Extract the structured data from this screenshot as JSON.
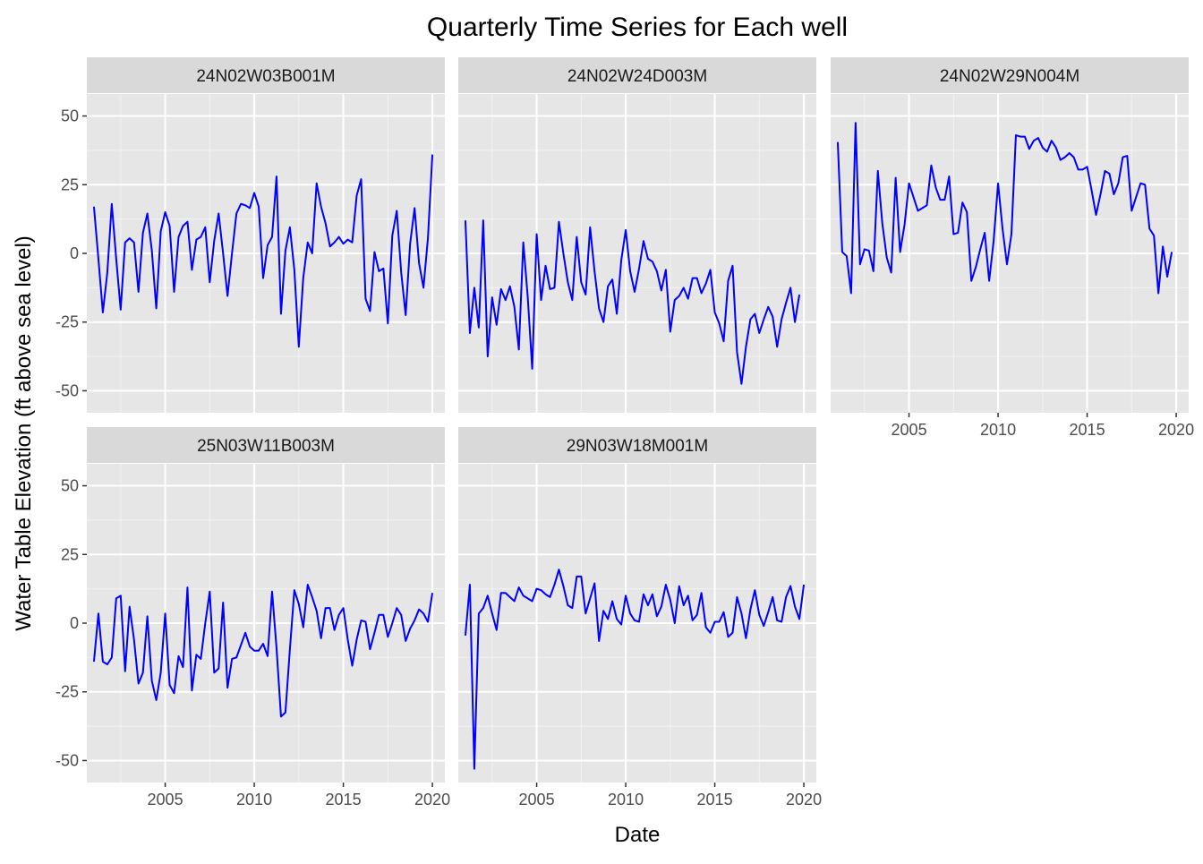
{
  "chart_data": {
    "type": "line",
    "title": "Quarterly Time Series for Each well",
    "xlabel": "Date",
    "ylabel": "Water Table Elevation (ft above sea level)",
    "x_ticks": [
      2005,
      2010,
      2015,
      2020
    ],
    "y_ticks": [
      -50,
      -25,
      0,
      25,
      50
    ],
    "xlim": [
      2000.6,
      2020.7
    ],
    "ylim": [
      -58,
      58
    ],
    "grid": true,
    "line_color": "#0000ff",
    "panel_background": "#e6e6e6",
    "strip_background": "#d9d9d9",
    "panels": [
      {
        "name": "24N02W03B001M",
        "x_start": 2001.0,
        "x_step": 0.25,
        "values": [
          17,
          -2,
          -21.5,
          -7,
          18,
          -2,
          -20.5,
          4,
          5.5,
          4,
          -14,
          7.5,
          14.5,
          1,
          -20,
          8,
          15,
          10,
          -14,
          6,
          10,
          11.5,
          -6,
          5,
          6,
          9.5,
          -10.5,
          4.5,
          14.5,
          0,
          -15.5,
          0,
          14.5,
          18,
          17.5,
          16.5,
          22,
          17,
          -9,
          3,
          6,
          28,
          -22,
          1,
          9.5,
          -6,
          -34,
          -9,
          4,
          0,
          25.5,
          17,
          11,
          2.5,
          4,
          6,
          3.5,
          5,
          4,
          21,
          27,
          -16.5,
          -21,
          0.5,
          -6.5,
          -5.5,
          -25.5,
          6.5,
          15.5,
          -7,
          -22.5,
          3.5,
          16.5,
          -3.5,
          -12.5,
          5.5,
          36
        ]
      },
      {
        "name": "24N02W24D003M",
        "x_start": 2001.0,
        "x_step": 0.25,
        "values": [
          12,
          -29,
          -12.5,
          -27,
          12,
          -37.5,
          -16,
          -26,
          -13,
          -17,
          -12,
          -19.5,
          -35,
          4,
          -16,
          -42,
          7,
          -17,
          -4.5,
          -13,
          -12.5,
          11.5,
          0,
          -10.5,
          -17,
          6,
          -10.5,
          -15,
          9.5,
          -6.5,
          -20,
          -25,
          -12,
          -9.5,
          -22,
          -2.5,
          8.5,
          -6.5,
          -14,
          -5.5,
          4.5,
          -2,
          -3,
          -6.5,
          -13.5,
          -6,
          -28.5,
          -17,
          -15.5,
          -12.5,
          -16.5,
          -9,
          -9,
          -14.5,
          -11,
          -6,
          -21.5,
          -25.5,
          -32,
          -10,
          -4.5,
          -36,
          -47.5,
          -34,
          -24,
          -22,
          -29,
          -24,
          -19.5,
          -23,
          -34,
          -24,
          -18,
          -12.5,
          -25,
          -15
        ]
      },
      {
        "name": "24N02W29N004M",
        "x_start": 2001.0,
        "x_step": 0.25,
        "values": [
          40.5,
          0.5,
          -1,
          -14.5,
          47.5,
          -4,
          1.5,
          1,
          -6.5,
          30,
          11,
          -1.5,
          -7,
          27.5,
          0.5,
          10.5,
          25.5,
          20.5,
          15.5,
          16.5,
          17.5,
          32,
          24,
          19.5,
          19.5,
          28,
          7,
          7.5,
          18.5,
          15,
          -10,
          -5,
          1.5,
          7.5,
          -10,
          4.5,
          25.5,
          9,
          -4,
          7,
          43,
          42.5,
          42.5,
          38,
          41,
          42,
          38.5,
          37,
          41,
          38.5,
          34,
          35,
          36.5,
          35,
          30.5,
          30.5,
          31.5,
          23,
          14,
          21.5,
          30,
          29,
          21.5,
          25.5,
          35,
          35.5,
          15.5,
          20.5,
          25.5,
          25,
          9,
          6.5,
          -14.5,
          2.5,
          -8.5,
          0.5
        ]
      },
      {
        "name": "25N03W11B003M",
        "x_start": 2001.0,
        "x_step": 0.25,
        "values": [
          -14,
          3.5,
          -14,
          -15,
          -12.5,
          9,
          10,
          -17.5,
          6,
          -6,
          -22,
          -18,
          2.5,
          -21,
          -28,
          -18,
          3.5,
          -22.5,
          -25.5,
          -12,
          -16,
          13,
          -24.5,
          -11.5,
          -13,
          0,
          11.5,
          -18,
          -16.5,
          7.5,
          -23.5,
          -13,
          -12.5,
          -8,
          -3.5,
          -8.5,
          -10,
          -10,
          -7.5,
          -12,
          11.5,
          -9,
          -34,
          -32.5,
          -9.5,
          12,
          7,
          -1.5,
          14,
          9.5,
          4.5,
          -5.5,
          5.5,
          5.5,
          -2.5,
          3,
          5.5,
          -6,
          -15.5,
          -6,
          1,
          0.5,
          -9.5,
          -3.5,
          3,
          3,
          -5,
          0,
          5.5,
          3,
          -6.5,
          -2,
          1,
          5,
          3.5,
          0.5,
          11
        ]
      },
      {
        "name": "29N03W18M001M",
        "x_start": 2001.0,
        "x_step": 0.25,
        "values": [
          -4.5,
          14,
          -53,
          3.5,
          5.5,
          10,
          3.5,
          -2.5,
          11,
          11,
          9.5,
          8,
          13,
          10,
          9,
          8,
          12.5,
          12,
          10.5,
          9.5,
          14,
          19.5,
          13.5,
          6.5,
          5.5,
          17,
          17,
          3.5,
          9,
          14.5,
          -6.5,
          4.5,
          1.5,
          8,
          1.5,
          -0.5,
          10,
          3.5,
          1,
          0.5,
          10.5,
          6.5,
          10.5,
          2.5,
          6,
          14,
          8.5,
          0,
          13.5,
          6.5,
          10,
          1,
          3,
          11,
          -1.5,
          -3.5,
          0.5,
          0.5,
          4,
          -5,
          -3.5,
          9.5,
          3.5,
          -5.5,
          5,
          12,
          3,
          -1,
          4,
          9.5,
          1,
          0.5,
          9.5,
          13.5,
          6,
          1.5,
          14
        ]
      }
    ]
  }
}
